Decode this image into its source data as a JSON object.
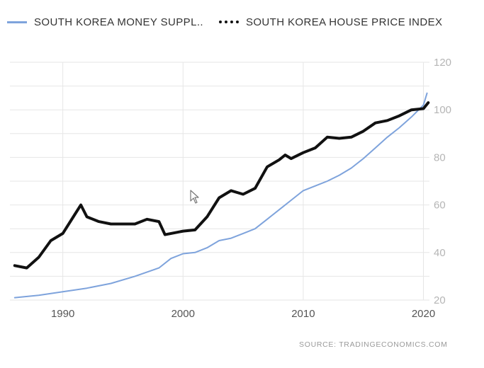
{
  "legend": {
    "series1_label": "SOUTH KOREA MONEY SUPPL..",
    "series2_label": "SOUTH KOREA HOUSE PRICE INDEX"
  },
  "source": {
    "prefix": "SOURCE:",
    "link": "TRADINGECONOMICS.COM"
  },
  "colors": {
    "money_supply": "#7ea3dc",
    "house_price": "#111111",
    "grid": "#e6e6e6",
    "tick_text": "#b5b5b5",
    "x_tick_text": "#555555"
  },
  "chart_data": {
    "type": "line",
    "title": "",
    "xlabel": "",
    "ylabel": "",
    "xlim": [
      1985.6,
      2020.5
    ],
    "ylim": [
      20,
      120
    ],
    "x_ticks": [
      1990,
      2000,
      2010,
      2020
    ],
    "y_ticks": [
      20,
      40,
      60,
      80,
      100,
      120
    ],
    "y_axis_side": "right",
    "grid": true,
    "legend_position": "top",
    "series": [
      {
        "name": "SOUTH KOREA MONEY SUPPL..",
        "style": "solid",
        "x": [
          1986,
          1988,
          1990,
          1992,
          1994,
          1996,
          1998,
          1999,
          2000,
          2001,
          2002,
          2003,
          2004,
          2005,
          2006,
          2007,
          2008,
          2009,
          2010,
          2011,
          2012,
          2013,
          2014,
          2015,
          2016,
          2017,
          2018,
          2019,
          2020,
          2020.3
        ],
        "values": [
          21,
          22,
          23.5,
          25,
          27,
          30,
          33.5,
          37.5,
          39.5,
          40,
          42,
          45,
          46,
          48,
          50,
          54,
          58,
          62,
          66,
          68,
          70,
          72.5,
          75.5,
          79.5,
          84,
          88.5,
          92.5,
          97,
          102,
          107
        ]
      },
      {
        "name": "SOUTH KOREA HOUSE PRICE INDEX",
        "style": "dotted",
        "x": [
          1986,
          1987,
          1988,
          1989,
          1990,
          1991,
          1991.5,
          1992,
          1993,
          1994,
          1995,
          1996,
          1997,
          1998,
          1998.5,
          1999,
          2000,
          2001,
          2002,
          2003,
          2004,
          2005,
          2006,
          2007,
          2008,
          2008.5,
          2009,
          2010,
          2011,
          2012,
          2013,
          2014,
          2015,
          2016,
          2017,
          2018,
          2019,
          2020,
          2020.4
        ],
        "values": [
          34.5,
          33.5,
          38,
          45,
          48,
          56,
          60,
          55,
          53,
          52,
          52,
          52,
          54,
          53,
          47.5,
          48,
          49,
          49.5,
          55,
          63,
          66,
          64.5,
          67,
          76,
          79,
          81,
          79.5,
          82,
          84,
          88.5,
          88,
          88.5,
          91,
          94.5,
          95.5,
          97.5,
          100,
          100.5,
          103
        ]
      }
    ]
  }
}
